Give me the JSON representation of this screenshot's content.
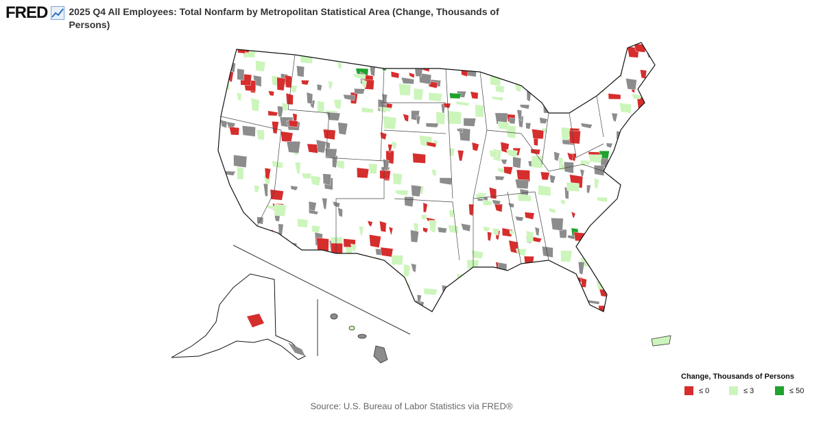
{
  "header": {
    "logo": "FRED",
    "title": "2025 Q4 All Employees: Total Nonfarm by Metropolitan Statistical Area (Change, Thousands of Persons)"
  },
  "legend": {
    "title": "Change, Thousands of Persons",
    "items": [
      {
        "label": "≤ 0",
        "color": "#d62d2d"
      },
      {
        "label": "≤ 3",
        "color": "#ccf5bb"
      },
      {
        "label": "≤ 50",
        "color": "#1fa22e"
      }
    ]
  },
  "source": "Source: U.S. Bureau of Labor Statistics via FRED®"
}
